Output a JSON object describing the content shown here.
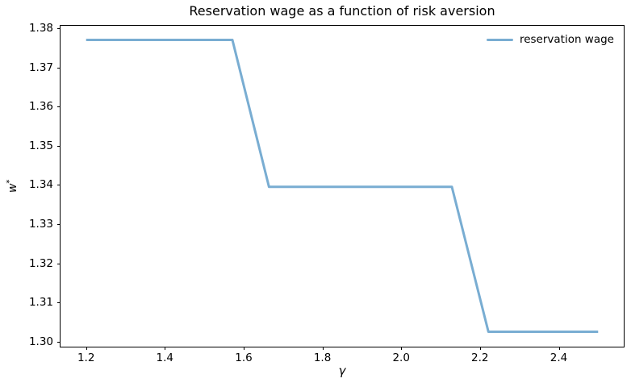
{
  "figure": {
    "title": "Reservation wage as a function of risk aversion",
    "xlabel": "γ",
    "ylabel_base": "w",
    "ylabel_sup": "*",
    "background_color": "#ffffff",
    "spine_color": "#000000"
  },
  "legend": {
    "label": "reservation wage",
    "line_color": "#79add2",
    "position": "upper right",
    "frame": false
  },
  "chart_data": {
    "type": "line",
    "title": "Reservation wage as a function of risk aversion",
    "xlabel": "γ",
    "ylabel": "w*",
    "grid": false,
    "legend_position": "upper right",
    "xlim": [
      1.135,
      2.565
    ],
    "ylim": [
      1.2987,
      1.3806
    ],
    "xticks": {
      "values": [
        1.2,
        1.4,
        1.6,
        1.8,
        2.0,
        2.2,
        2.4
      ],
      "labels": [
        "1.2",
        "1.4",
        "1.6",
        "1.8",
        "2.0",
        "2.2",
        "2.4"
      ]
    },
    "yticks": {
      "values": [
        1.3,
        1.31,
        1.32,
        1.33,
        1.34,
        1.35,
        1.36,
        1.37,
        1.38
      ],
      "labels": [
        "1.30",
        "1.31",
        "1.32",
        "1.33",
        "1.34",
        "1.35",
        "1.36",
        "1.37",
        "1.38"
      ]
    },
    "series": [
      {
        "name": "reservation wage",
        "color": "#79add2",
        "line_width": 3,
        "x": [
          1.2,
          1.2929,
          1.3857,
          1.4786,
          1.5714,
          1.6643,
          1.7571,
          1.85,
          1.9429,
          2.0357,
          2.1286,
          2.2214,
          2.3143,
          2.4071,
          2.5
        ],
        "y": [
          1.377,
          1.377,
          1.377,
          1.377,
          1.377,
          1.3395,
          1.3395,
          1.3395,
          1.3395,
          1.3395,
          1.3395,
          1.3025,
          1.3025,
          1.3025,
          1.3025
        ]
      }
    ]
  }
}
